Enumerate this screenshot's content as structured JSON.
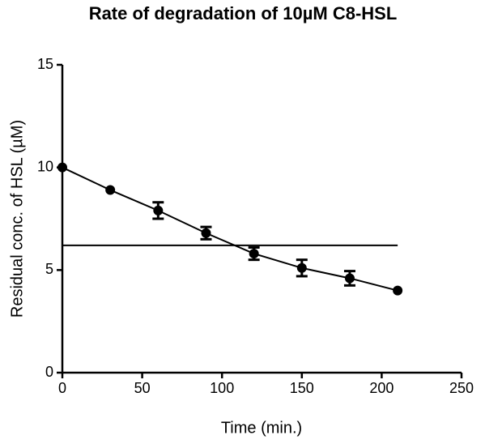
{
  "chart_data": {
    "type": "line",
    "title": "Rate of degradation of 10µM C8-HSL",
    "x_label": "Time (min.)",
    "y_label": "Residual conc. of HSL (µM)",
    "x": [
      0,
      30,
      60,
      90,
      120,
      150,
      180,
      210
    ],
    "series": [
      {
        "color": "#000000",
        "values": [
          10,
          8.9,
          7.9,
          6.8,
          5.8,
          5.1,
          4.6,
          4.0
        ],
        "errors": [
          null,
          null,
          0.4,
          0.3,
          0.3,
          0.4,
          0.35,
          null
        ]
      }
    ],
    "reference_line": {
      "y": 6.2,
      "x": [
        0,
        210
      ]
    },
    "xlim": [
      0,
      250
    ],
    "xticks": [
      0,
      50,
      100,
      150,
      200,
      250
    ],
    "ylim": [
      0,
      15
    ],
    "yticks": [
      0,
      5,
      10,
      15
    ]
  }
}
